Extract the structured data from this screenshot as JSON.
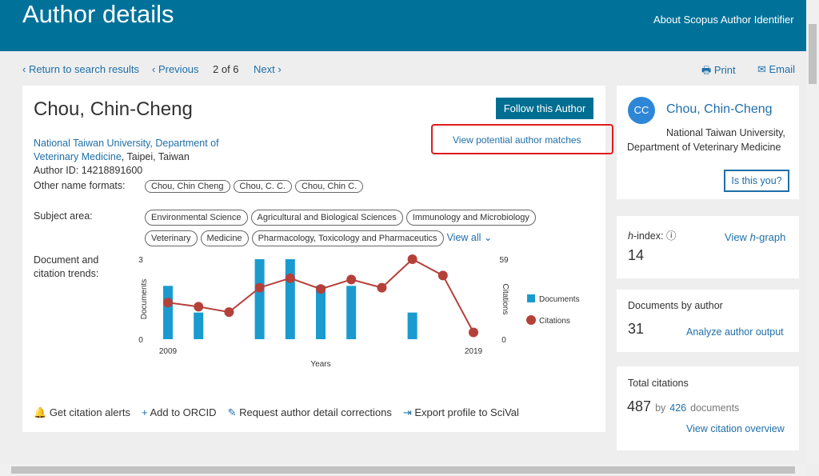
{
  "header": {
    "title": "Author details",
    "link": "About Scopus Author Identifier"
  },
  "nav": {
    "back": "Return to search results",
    "previous": "Previous",
    "position": "2 of 6",
    "next": "Next",
    "print": "Print",
    "email": "Email"
  },
  "author": {
    "name": "Chou, Chin-Cheng",
    "follow": "Follow this Author",
    "matches": "View potential author matches",
    "affiliation_link": "National Taiwan University, Department of Veterinary Medicine",
    "affiliation_rest": ", Taipei, Taiwan",
    "author_id": "Author ID: 14218891600",
    "other_names_label": "Other name formats:",
    "other_names": [
      "Chou, Chin Cheng",
      "Chou, C. C.",
      "Chou, Chin C."
    ],
    "subject_label": "Subject area:",
    "subjects": [
      "Environmental Science",
      "Agricultural and Biological Sciences",
      "Immunology and Microbiology",
      "Veterinary",
      "Medicine",
      "Pharmacology, Toxicology and Pharmaceutics"
    ],
    "view_all": "View all",
    "trends_label": "Document and citation trends:"
  },
  "actions": [
    "Get citation alerts",
    "Add to ORCID",
    "Request author detail corrections",
    "Export profile to SciVal"
  ],
  "sidebar": {
    "initials": "CC",
    "name": "Chou, Chin-Cheng",
    "affiliation": "National Taiwan University, Department of Veterinary Medicine",
    "is_you": "Is this you?",
    "h": "h",
    "hindex_label": "-index:",
    "hindex_value": "14",
    "view": "View ",
    "graph": "-graph",
    "docs_label": "Documents by author",
    "docs_value": "31",
    "analyze": "Analyze author output",
    "citations_label": "Total citations",
    "citations_value": "487",
    "by": "by",
    "by_docs": "426",
    "documents_word": "documents",
    "overview": "View citation overview"
  },
  "chart_data": {
    "type": "bar",
    "x_label": "Years",
    "y_label": "Documents",
    "y2_label": "Citations",
    "categories": [
      "2009",
      null,
      null,
      null,
      null,
      null,
      null,
      null,
      null,
      null,
      "2019"
    ],
    "ylim": [
      0,
      3
    ],
    "yticks": [
      0,
      3
    ],
    "y2lim": [
      0,
      59
    ],
    "y2ticks": [
      0,
      59
    ],
    "series": [
      {
        "name": "Documents",
        "type": "bar",
        "color": "#1a9bd0",
        "values": [
          2,
          1,
          0,
          3,
          3,
          2,
          2,
          0,
          1,
          0,
          0
        ]
      },
      {
        "name": "Citations",
        "type": "line",
        "axis": "y2",
        "color": "#b5403a",
        "values": [
          27,
          24,
          20,
          38,
          45,
          37,
          44,
          38,
          59,
          47,
          5
        ]
      }
    ]
  }
}
